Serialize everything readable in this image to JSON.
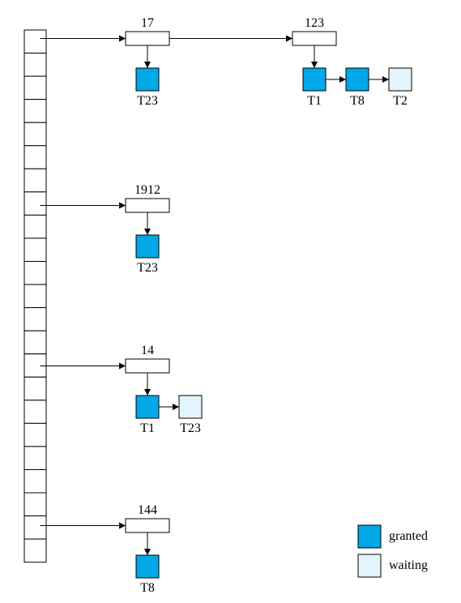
{
  "diagram": {
    "type": "lock-table",
    "colors": {
      "granted": "#00a8e8",
      "waiting": "#e4f4fc",
      "stroke": "#000000",
      "background": "#ffffff"
    },
    "hash_table": {
      "bucket_count": 23
    },
    "chains": [
      {
        "bucket": 0,
        "items": [
          {
            "label": "17",
            "requests": [
              {
                "label": "T23",
                "status": "granted"
              }
            ]
          },
          {
            "label": "123",
            "requests": [
              {
                "label": "T1",
                "status": "granted"
              },
              {
                "label": "T8",
                "status": "granted"
              },
              {
                "label": "T2",
                "status": "waiting"
              }
            ]
          }
        ]
      },
      {
        "bucket": 7,
        "items": [
          {
            "label": "1912",
            "requests": [
              {
                "label": "T23",
                "status": "granted"
              }
            ]
          }
        ]
      },
      {
        "bucket": 14,
        "items": [
          {
            "label": "14",
            "requests": [
              {
                "label": "T1",
                "status": "granted"
              },
              {
                "label": "T23",
                "status": "waiting"
              }
            ]
          }
        ]
      },
      {
        "bucket": 21,
        "items": [
          {
            "label": "144",
            "requests": [
              {
                "label": "T8",
                "status": "granted"
              }
            ]
          }
        ]
      }
    ],
    "legend": [
      {
        "label": "granted",
        "status": "granted"
      },
      {
        "label": "waiting",
        "status": "waiting"
      }
    ]
  }
}
